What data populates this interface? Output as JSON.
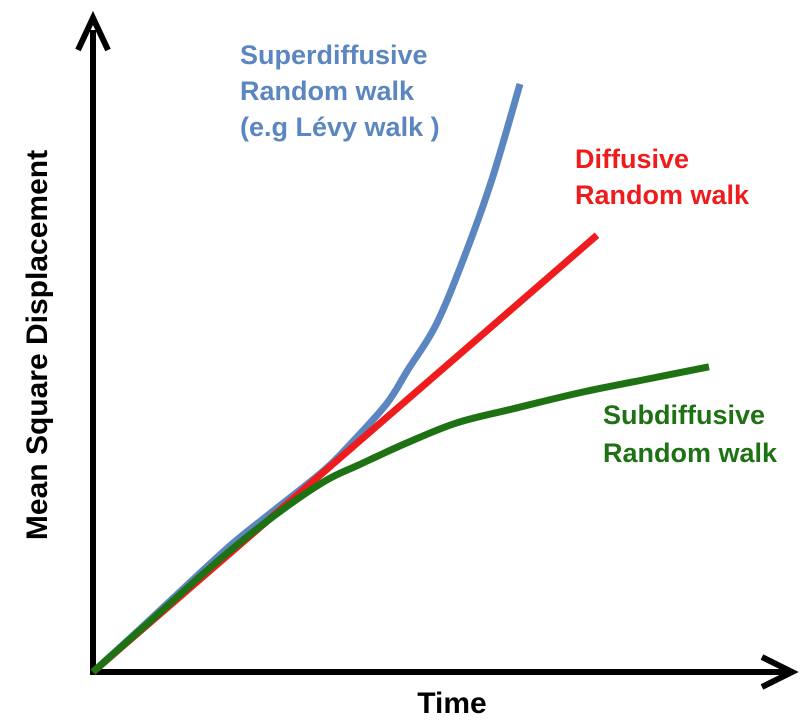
{
  "chart_data": {
    "type": "line",
    "title": "",
    "xlabel": "Time",
    "ylabel": "Mean Square Displacement",
    "axis_ticks": false,
    "grid": false,
    "series": [
      {
        "key": "superdiffusive",
        "label_lines": [
          "Superdiffusive",
          "Random walk",
          "(e.g Lévy walk )"
        ],
        "color": "#5B86C0",
        "points": [
          [
            0,
            0
          ],
          [
            0.07,
            0.08
          ],
          [
            0.13,
            0.15
          ],
          [
            0.2,
            0.23
          ],
          [
            0.26,
            0.29
          ],
          [
            0.33,
            0.36
          ],
          [
            0.37,
            0.41
          ],
          [
            0.42,
            0.48
          ],
          [
            0.45,
            0.54
          ],
          [
            0.49,
            0.62
          ],
          [
            0.53,
            0.74
          ],
          [
            0.57,
            0.88
          ],
          [
            0.61,
            1.05
          ]
        ]
      },
      {
        "key": "diffusive",
        "label_lines": [
          "Diffusive",
          "Random walk"
        ],
        "color": "#EE1C1C",
        "points": [
          [
            0,
            0
          ],
          [
            0.72,
            0.78
          ]
        ]
      },
      {
        "key": "subdiffusive",
        "label_lines": [
          "Subdiffusive",
          "Random walk"
        ],
        "color": "#1E7214",
        "points": [
          [
            0,
            0
          ],
          [
            0.09,
            0.1
          ],
          [
            0.18,
            0.2
          ],
          [
            0.26,
            0.28
          ],
          [
            0.33,
            0.34
          ],
          [
            0.38,
            0.37
          ],
          [
            0.45,
            0.41
          ],
          [
            0.52,
            0.445
          ],
          [
            0.6,
            0.47
          ],
          [
            0.7,
            0.5
          ],
          [
            0.8,
            0.525
          ],
          [
            0.88,
            0.545
          ]
        ]
      }
    ]
  }
}
